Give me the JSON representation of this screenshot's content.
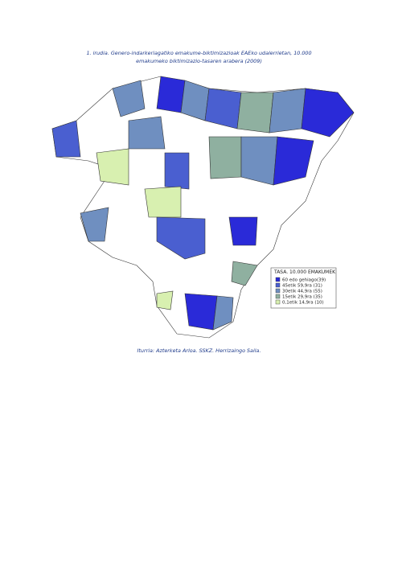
{
  "figure": {
    "title_lines": [
      "1. irudia. Genero-indarkeriagatiko emakume-biktimizazioak EAEko udalerrietan, 10.000",
      "emakumeko biktimizazio-tasaren arabera (2009)"
    ],
    "legend": {
      "title": "TASA. 10.000 EMAKUMEK",
      "items": [
        "60 edo gehiago(39)",
        "45etik 59,9ra  (31)",
        "30etik 44,9ra  (55)",
        "15etik 29,9ra  (35)",
        "0,1etik 14,9ra  (10)"
      ]
    },
    "source": "Iturria: Azterketa Arloa. SSKZ. Herrizaingo Saila."
  }
}
